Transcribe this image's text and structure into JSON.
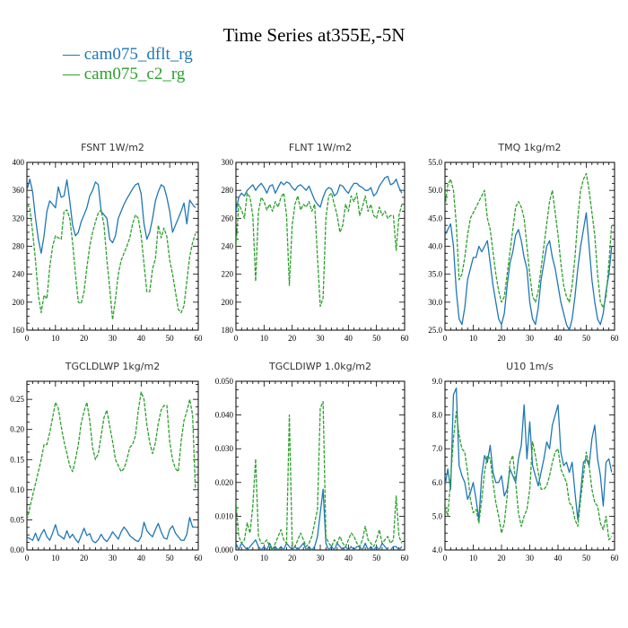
{
  "title": "Time Series at355E,-5N",
  "legend": {
    "items": [
      {
        "symbol": "—",
        "label": "cam075_dflt_rg",
        "color": "#1f77b4"
      },
      {
        "symbol": "—",
        "label": "cam075_c2_rg",
        "color": "#2ca02c"
      }
    ]
  },
  "chart_data": [
    {
      "type": "line",
      "title": "FSNT   1W/m2",
      "xlim": [
        0,
        60
      ],
      "xticks": [
        0,
        10,
        20,
        30,
        40,
        50,
        60
      ],
      "ylim": [
        160,
        400
      ],
      "yticks": [
        160,
        200,
        240,
        280,
        320,
        360,
        400
      ],
      "ytick_labels": [
        "160",
        "200",
        "240",
        "280",
        "320",
        "360",
        "400"
      ],
      "series": [
        {
          "name": "cam075_dflt_rg",
          "color": "#1f77b4",
          "values": [
            360,
            376,
            358,
            320,
            290,
            270,
            295,
            330,
            345,
            340,
            335,
            365,
            350,
            352,
            375,
            345,
            310,
            295,
            300,
            315,
            325,
            335,
            352,
            360,
            372,
            368,
            330,
            325,
            320,
            290,
            285,
            295,
            320,
            330,
            340,
            348,
            355,
            362,
            368,
            370,
            355,
            312,
            290,
            300,
            320,
            345,
            358,
            368,
            365,
            350,
            330,
            300,
            310,
            320,
            330,
            342,
            312,
            346,
            340,
            335
          ]
        },
        {
          "name": "cam075_c2_rg",
          "color": "#2ca02c",
          "values": [
            340,
            335,
            300,
            260,
            210,
            185,
            210,
            205,
            250,
            280,
            295,
            292,
            290,
            330,
            332,
            320,
            285,
            240,
            200,
            198,
            215,
            250,
            280,
            300,
            315,
            328,
            332,
            310,
            260,
            220,
            175,
            205,
            240,
            260,
            270,
            280,
            292,
            312,
            325,
            320,
            295,
            255,
            215,
            215,
            248,
            262,
            310,
            292,
            306,
            294,
            260,
            240,
            215,
            190,
            185,
            195,
            230,
            265,
            285,
            298
          ]
        }
      ]
    },
    {
      "type": "line",
      "title": "FLNT   1W/m2",
      "xlim": [
        0,
        60
      ],
      "xticks": [
        0,
        10,
        20,
        30,
        40,
        50,
        60
      ],
      "ylim": [
        180,
        300
      ],
      "yticks": [
        180,
        200,
        220,
        240,
        260,
        280,
        300
      ],
      "ytick_labels": [
        "180",
        "200",
        "220",
        "240",
        "260",
        "280",
        "300"
      ],
      "series": [
        {
          "name": "cam075_dflt_rg",
          "color": "#1f77b4",
          "values": [
            265,
            275,
            278,
            276,
            280,
            282,
            284,
            280,
            283,
            285,
            282,
            278,
            283,
            284,
            278,
            282,
            286,
            284,
            286,
            285,
            282,
            280,
            283,
            284,
            282,
            280,
            283,
            278,
            273,
            270,
            268,
            275,
            280,
            282,
            281,
            276,
            278,
            284,
            283,
            280,
            278,
            282,
            285,
            285,
            283,
            282,
            280,
            280,
            282,
            276,
            278,
            283,
            286,
            289,
            290,
            284,
            285,
            288,
            282,
            278
          ]
        },
        {
          "name": "cam075_c2_rg",
          "color": "#2ca02c",
          "values": [
            240,
            270,
            266,
            260,
            278,
            275,
            262,
            215,
            265,
            275,
            272,
            266,
            270,
            265,
            272,
            268,
            275,
            278,
            262,
            212,
            255,
            270,
            276,
            266,
            270,
            268,
            272,
            265,
            270,
            232,
            197,
            203,
            260,
            276,
            278,
            270,
            262,
            250,
            255,
            270,
            265,
            276,
            272,
            278,
            262,
            268,
            276,
            265,
            270,
            262,
            260,
            268,
            262,
            265,
            260,
            262,
            262,
            237,
            262,
            270
          ]
        }
      ]
    },
    {
      "type": "line",
      "title": "TMQ   1kg/m2",
      "xlim": [
        0,
        60
      ],
      "xticks": [
        0,
        10,
        20,
        30,
        40,
        50,
        60
      ],
      "ylim": [
        25.0,
        55.0
      ],
      "yticks": [
        25,
        30,
        35,
        40,
        45,
        50,
        55
      ],
      "ytick_labels": [
        "25.0",
        "30.0",
        "35.0",
        "40.0",
        "45.0",
        "50.0",
        "55.0"
      ],
      "series": [
        {
          "name": "cam075_dflt_rg",
          "color": "#1f77b4",
          "values": [
            42,
            43,
            44,
            40,
            32,
            27,
            26,
            29,
            34,
            36,
            38,
            38,
            40,
            39,
            40,
            41,
            37,
            33,
            30,
            27,
            26,
            28,
            33,
            37,
            39,
            42,
            43,
            41,
            38,
            36,
            30,
            27,
            26,
            29,
            34,
            37,
            40,
            41,
            38,
            36,
            33,
            30,
            28,
            26,
            25,
            27,
            31,
            36,
            40,
            43,
            46,
            40,
            34,
            30,
            27,
            26,
            28,
            32,
            35,
            40
          ]
        },
        {
          "name": "cam075_c2_rg",
          "color": "#2ca02c",
          "values": [
            47,
            51,
            52,
            50,
            44,
            34,
            35,
            38,
            42,
            45,
            46,
            47,
            48,
            49,
            50,
            45,
            43,
            39,
            35,
            32,
            30,
            31,
            35,
            39,
            43,
            47,
            48,
            47,
            45,
            40,
            35,
            31,
            30,
            32,
            36,
            40,
            44,
            48,
            50,
            46,
            42,
            37,
            33,
            31,
            30,
            33,
            38,
            45,
            50,
            52,
            53,
            50,
            46,
            42,
            35,
            30,
            29,
            31,
            37,
            44
          ]
        }
      ]
    },
    {
      "type": "line",
      "title": "TGCLDLWP   1kg/m2",
      "xlim": [
        0,
        60
      ],
      "xticks": [
        0,
        10,
        20,
        30,
        40,
        50,
        60
      ],
      "ylim": [
        0.0,
        0.28
      ],
      "yticks": [
        0.0,
        0.05,
        0.1,
        0.15,
        0.2,
        0.25
      ],
      "ytick_labels": [
        "0.00",
        "0.05",
        "0.10",
        "0.15",
        "0.20",
        "0.25"
      ],
      "series": [
        {
          "name": "cam075_dflt_rg",
          "color": "#1f77b4",
          "values": [
            0.021,
            0.019,
            0.016,
            0.028,
            0.015,
            0.026,
            0.034,
            0.022,
            0.016,
            0.028,
            0.042,
            0.025,
            0.022,
            0.018,
            0.032,
            0.02,
            0.026,
            0.018,
            0.012,
            0.024,
            0.036,
            0.024,
            0.027,
            0.015,
            0.012,
            0.017,
            0.026,
            0.018,
            0.014,
            0.021,
            0.03,
            0.024,
            0.018,
            0.03,
            0.038,
            0.032,
            0.024,
            0.02,
            0.016,
            0.014,
            0.022,
            0.046,
            0.032,
            0.026,
            0.022,
            0.034,
            0.044,
            0.03,
            0.02,
            0.018,
            0.034,
            0.04,
            0.028,
            0.022,
            0.016,
            0.016,
            0.026,
            0.054,
            0.038,
            0.038
          ]
        },
        {
          "name": "cam075_c2_rg",
          "color": "#2ca02c",
          "values": [
            0.05,
            0.07,
            0.09,
            0.11,
            0.13,
            0.15,
            0.175,
            0.175,
            0.195,
            0.22,
            0.245,
            0.235,
            0.205,
            0.18,
            0.16,
            0.14,
            0.13,
            0.15,
            0.175,
            0.21,
            0.23,
            0.245,
            0.215,
            0.17,
            0.15,
            0.16,
            0.19,
            0.22,
            0.232,
            0.205,
            0.18,
            0.15,
            0.14,
            0.13,
            0.135,
            0.15,
            0.17,
            0.175,
            0.19,
            0.232,
            0.262,
            0.25,
            0.208,
            0.178,
            0.16,
            0.178,
            0.21,
            0.232,
            0.24,
            0.24,
            0.18,
            0.15,
            0.135,
            0.13,
            0.18,
            0.215,
            0.23,
            0.25,
            0.225,
            0.1
          ]
        }
      ]
    },
    {
      "type": "line",
      "title": "TGCLDIWP   1.0kg/m2",
      "xlim": [
        0,
        60
      ],
      "xticks": [
        0,
        10,
        20,
        30,
        40,
        50,
        60
      ],
      "ylim": [
        0.0,
        0.05
      ],
      "yticks": [
        0.0,
        0.01,
        0.02,
        0.03,
        0.04,
        0.05
      ],
      "ytick_labels": [
        "0.000",
        "0.010",
        "0.020",
        "0.030",
        "0.040",
        "0.050"
      ],
      "series": [
        {
          "name": "cam075_dflt_rg",
          "color": "#1f77b4",
          "values": [
            0.002,
            0.0,
            0.002,
            0.001,
            0.0,
            0.001,
            0.002,
            0.003,
            0.001,
            0.0,
            0.001,
            0.0,
            0.002,
            0.0,
            0.001,
            0.0,
            0.001,
            0.0,
            0.002,
            0.001,
            0.0,
            0.001,
            0.0,
            0.001,
            0.002,
            0.0,
            0.001,
            0.0,
            0.001,
            0.004,
            0.011,
            0.018,
            0.002,
            0.0,
            0.001,
            0.0,
            0.002,
            0.001,
            0.0,
            0.001,
            0.0,
            0.001,
            0.0,
            0.001,
            0.001,
            0.0,
            0.002,
            0.0,
            0.001,
            0.0,
            0.001,
            0.0,
            0.002,
            0.001,
            0.0,
            0.0,
            0.001,
            0.001,
            0.0,
            0.001
          ]
        },
        {
          "name": "cam075_c2_rg",
          "color": "#2ca02c",
          "values": [
            0.014,
            0.004,
            0.002,
            0.003,
            0.008,
            0.005,
            0.013,
            0.027,
            0.004,
            0.002,
            0.002,
            0.003,
            0.001,
            0.0,
            0.002,
            0.004,
            0.006,
            0.003,
            0.002,
            0.04,
            0.002,
            0.001,
            0.003,
            0.005,
            0.003,
            0.001,
            0.002,
            0.004,
            0.008,
            0.012,
            0.042,
            0.044,
            0.004,
            0.002,
            0.001,
            0.003,
            0.002,
            0.004,
            0.002,
            0.001,
            0.003,
            0.005,
            0.004,
            0.002,
            0.001,
            0.003,
            0.007,
            0.003,
            0.002,
            0.001,
            0.003,
            0.006,
            0.002,
            0.003,
            0.004,
            0.002,
            0.003,
            0.016,
            0.004,
            0.002
          ]
        }
      ]
    },
    {
      "type": "line",
      "title": "U10   1m/s",
      "xlim": [
        0,
        60
      ],
      "xticks": [
        0,
        10,
        20,
        30,
        40,
        50,
        60
      ],
      "ylim": [
        4.0,
        9.0
      ],
      "yticks": [
        4,
        5,
        6,
        7,
        8,
        9
      ],
      "ytick_labels": [
        "4.0",
        "5.0",
        "6.0",
        "7.0",
        "8.0",
        "9.0"
      ],
      "series": [
        {
          "name": "cam075_dflt_rg",
          "color": "#1f77b4",
          "values": [
            5.9,
            6.4,
            5.8,
            8.6,
            8.8,
            6.5,
            6.2,
            6.0,
            5.5,
            5.7,
            6.0,
            5.5,
            4.9,
            6.2,
            6.8,
            6.6,
            7.1,
            6.3,
            6.0,
            6.0,
            6.2,
            5.6,
            5.8,
            6.4,
            6.2,
            6.0,
            6.7,
            7.1,
            8.3,
            6.7,
            7.8,
            6.5,
            6.2,
            5.9,
            6.3,
            6.7,
            7.2,
            7.0,
            7.7,
            8.0,
            8.3,
            6.9,
            6.5,
            6.6,
            6.3,
            6.6,
            5.7,
            4.9,
            5.7,
            6.6,
            6.7,
            6.5,
            7.3,
            7.7,
            6.7,
            6.2,
            5.3,
            6.6,
            6.7,
            6.3
          ]
        },
        {
          "name": "cam075_c2_rg",
          "color": "#2ca02c",
          "values": [
            5.3,
            5.0,
            6.1,
            7.3,
            8.1,
            7.4,
            7.0,
            6.9,
            6.3,
            5.5,
            5.1,
            5.2,
            4.8,
            5.5,
            6.3,
            6.8,
            6.7,
            6.0,
            5.4,
            5.0,
            4.5,
            4.8,
            5.6,
            6.6,
            6.8,
            6.0,
            5.1,
            4.7,
            5.0,
            5.2,
            5.8,
            7.2,
            6.8,
            6.3,
            5.8,
            5.8,
            5.9,
            6.2,
            6.6,
            6.9,
            7.0,
            6.4,
            6.2,
            6.0,
            5.4,
            5.3,
            4.9,
            4.7,
            5.5,
            6.2,
            6.9,
            6.5,
            5.8,
            5.4,
            5.3,
            4.8,
            4.6,
            5.0,
            4.3,
            4.4
          ]
        }
      ]
    }
  ]
}
